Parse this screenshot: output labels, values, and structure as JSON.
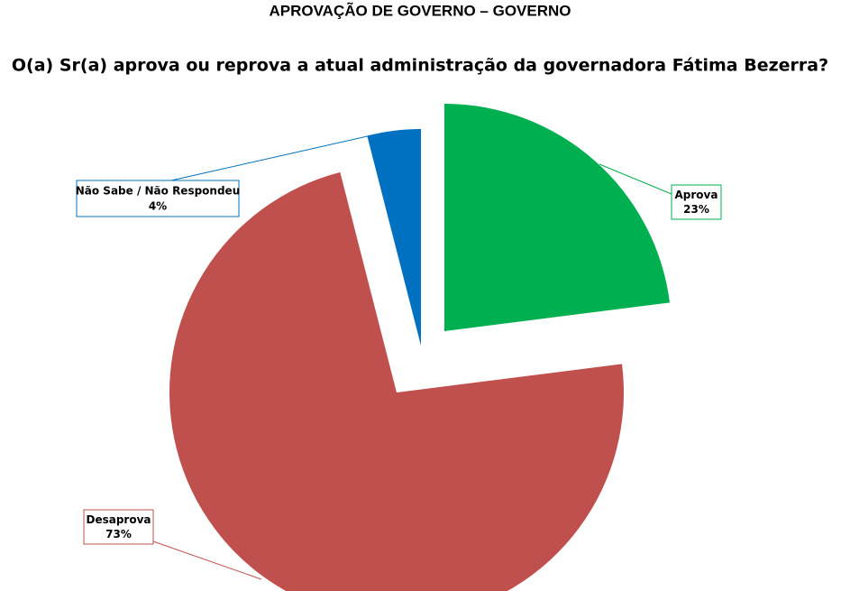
{
  "chart_data": {
    "type": "pie",
    "title": "APROVAÇÃO DE GOVERNO – GOVERNO",
    "subtitle": "O(a) Sr(a) aprova ou reprova a atual administração da governadora Fátima Bezerra?",
    "categories": [
      "Aprova",
      "Desaprova",
      "Não Sabe / Não Respondeu"
    ],
    "values": [
      23,
      73,
      4
    ],
    "value_labels": [
      "23%",
      "73%",
      "4%"
    ],
    "colors": [
      "#00b050",
      "#c0504d",
      "#0070c0"
    ]
  }
}
